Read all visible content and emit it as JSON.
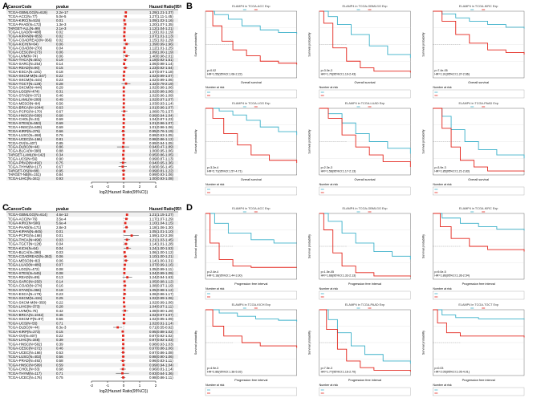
{
  "panels": {
    "A": {
      "letter": "A",
      "headers": [
        "CancerCode",
        "pvalue",
        "Hazard Ratio(95%CI)"
      ],
      "axis_title": "log2(Hazard Ratio(95%CI))",
      "ticks": [
        "-4",
        "-2",
        "0",
        "2",
        "4"
      ],
      "rows": [
        {
          "code": "TCGA-GBMLGG(N=619)",
          "p": "2.2e-17",
          "hr": "1.29(1.21-1.37)",
          "v": 0.37
        },
        {
          "code": "TCGA-ACC(N=77)",
          "p": "5.0e-5",
          "hr": "1.27(1.11-1.45)",
          "v": 0.35
        },
        {
          "code": "TCGA-KIRC(N=515)",
          "p": "0.01",
          "hr": "1.09(1.02-1.16)",
          "v": 0.13
        },
        {
          "code": "TCGA-PAAD(N=172)",
          "p": "1.3e-3",
          "hr": "1.20(1.07-1.35)",
          "v": 0.27
        },
        {
          "code": "TARGET-ALL(N=99)",
          "p": "2.1e-3",
          "hr": "1.12(1.04-1.21)",
          "v": 0.16
        },
        {
          "code": "TCGA-LUAD(N=488)",
          "p": "0.02",
          "hr": "1.10(1.02-1.19)",
          "v": 0.14
        },
        {
          "code": "TCGA-KIPAN(N=855)",
          "p": "0.02",
          "hr": "1.07(1.01-1.13)",
          "v": 0.1
        },
        {
          "code": "TCGA-COADREAD(N=366)",
          "p": "0.02",
          "hr": "1.15(1.02-1.29)",
          "v": 0.2
        },
        {
          "code": "TCGA-KICH(N=64)",
          "p": "0.06",
          "hr": "1.39(0.99-1.96)",
          "v": 0.48
        },
        {
          "code": "TCGA-COAD(N=270)",
          "p": "0.04",
          "hr": "1.12(1.01-1.25)",
          "v": 0.16
        },
        {
          "code": "TCGA-CESC(N=273)",
          "p": "0.06",
          "hr": "1.09(1.00-1.19)",
          "v": 0.12
        },
        {
          "code": "TCGA-UVM(N=74)",
          "p": "0.06",
          "hr": "1.40(0.98-2.01)",
          "v": 0.49
        },
        {
          "code": "TCGA-THCA(N=501)",
          "p": "0.19",
          "hr": "1.18(0.92-1.51)",
          "v": 0.24
        },
        {
          "code": "TCGA-SARC(N=254)",
          "p": "0.14",
          "hr": "1.06(0.98-1.14)",
          "v": 0.08
        },
        {
          "code": "TCGA-READ(N=90)",
          "p": "0.15",
          "hr": "1.23(0.92-1.64)",
          "v": 0.3
        },
        {
          "code": "TCGA-ESCA(N=181)",
          "p": "0.18",
          "hr": "1.07(0.97-1.18)",
          "v": 0.1
        },
        {
          "code": "TCGA-SKCM-M(N=347)",
          "p": "0.22",
          "hr": "1.02(0.99-1.07)",
          "v": 0.03
        },
        {
          "code": "TCGA-SKCM(N=444)",
          "p": "0.23",
          "hr": "1.02(0.99-1.06)",
          "v": 0.03
        },
        {
          "code": "TCGA-TGCT(N=128)",
          "p": "0.28",
          "hr": "1.32(0.79-2.19)",
          "v": 0.4
        },
        {
          "code": "TCGA-SKCM(N=444)",
          "p": "0.29",
          "hr": "1.02(0.98-1.06)",
          "v": 0.03
        },
        {
          "code": "TCGA-LGG(N=474)",
          "p": "0.31",
          "hr": "1.02(0.98-1.06)",
          "v": 0.03
        },
        {
          "code": "TCGA-STAD(N=372)",
          "p": "0.46",
          "hr": "1.02(0.96-1.09)",
          "v": 0.03
        },
        {
          "code": "TCGA-LAML(N=209)",
          "p": "0.49",
          "hr": "1.02(0.97-1.07)",
          "v": 0.03
        },
        {
          "code": "TCGA-MESO(N=84)",
          "p": "0.56",
          "hr": "1.03(0.93-1.14)",
          "v": 0.04
        },
        {
          "code": "TCGA-BRCA(N=1044)",
          "p": "0.63",
          "hr": "1.01(0.96-1.07)",
          "v": 0.01
        },
        {
          "code": "TCGA-PCPG(N=170)",
          "p": "0.67",
          "hr": "1.08(0.75-1.57)",
          "v": 0.11
        },
        {
          "code": "TCGA-HNSC(N=509)",
          "p": "0.68",
          "hr": "0.99(0.94-1.04)",
          "v": -0.01
        },
        {
          "code": "TCGA-CHOL(N=33)",
          "p": "0.69",
          "hr": "1.04(0.87-1.23)",
          "v": 0.06
        },
        {
          "code": "TCGA-STES(N=553)",
          "p": "0.69",
          "hr": "1.01(0.96-1.07)",
          "v": 0.01
        },
        {
          "code": "TCGA-HNSC(N=509)",
          "p": "0.69",
          "hr": "1.01(0.96-1.06)",
          "v": 0.01
        },
        {
          "code": "TCGA-KIRP(N=276)",
          "p": "0.66",
          "hr": "0.95(0.76-1.19)",
          "v": -0.07
        },
        {
          "code": "TCGA-LUSC(N=468)",
          "p": "0.76",
          "hr": "0.99(0.93-1.05)",
          "v": -0.01
        },
        {
          "code": "TCGA-UCEC(N=166)",
          "p": "0.81",
          "hr": "0.98(0.86-1.12)",
          "v": -0.03
        },
        {
          "code": "TCGA-OV(N=407)",
          "p": "0.85",
          "hr": "0.99(0.94-1.05)",
          "v": -0.01
        },
        {
          "code": "TCGA-DLBC(N=44)",
          "p": "0.86",
          "hr": "0.94(0.47-1.89)",
          "v": -0.09
        },
        {
          "code": "TCGA-BLCA(N=398)",
          "p": "0.88",
          "hr": "1.00(0.95-1.06)",
          "v": 0.0
        },
        {
          "code": "TARGET-LAML(N=142)",
          "p": "0.34",
          "hr": "0.95(0.86-1.05)",
          "v": -0.07
        },
        {
          "code": "TCGA-UCS(N=56)",
          "p": "0.90",
          "hr": "0.99(0.87-1.13)",
          "v": -0.01
        },
        {
          "code": "TCGA-PRAD(N=492)",
          "p": "0.75",
          "hr": "0.94(0.65-1.36)",
          "v": -0.09
        },
        {
          "code": "TCGA-THYM(N=117)",
          "p": "0.67",
          "hr": "0.90(0.56-1.45)",
          "v": -0.15
        },
        {
          "code": "TARGET-OS(N=88)",
          "p": "0.95",
          "hr": "0.99(0.81-1.22)",
          "v": -0.01
        },
        {
          "code": "TARGET-NB(N=151)",
          "p": "0.84",
          "hr": "0.99(0.93-1.06)",
          "v": -0.01
        },
        {
          "code": "TCGA-LIHC(N=341)",
          "p": "0.93",
          "hr": "1.00(0.93-1.08)",
          "v": 0.0
        }
      ]
    },
    "B": {
      "letter": "B",
      "plots": [
        {
          "title": "ELAMP4 in TCGA-ACC Exp",
          "stats": "p=0.02\nHR=1.55(95%CI:1.08-2.22)",
          "xlab": "Overall survival",
          "ylab": "Survival probability",
          "risk": "Number at risk"
        },
        {
          "title": "ELAMP4 in TCGA-GBMLGG Exp",
          "stats": "p=3.0e-3\nHR=1.70(95%CI:1.19-2.43)",
          "xlab": "Overall survival",
          "ylab": "Survival probability",
          "risk": "Number at risk"
        },
        {
          "title": "ELAMP4 in TCGA-KIRC Exp",
          "stats": "p=7.4e-05\nHR=1.91(95%CI:1.37-2.66)",
          "xlab": "Overall survival",
          "ylab": "Survival probability",
          "risk": "Number at risk"
        },
        {
          "title": "ELAMP4 in TCGA-LGG Exp",
          "stats": "p=3.2e-4\nHR=2.71(95%CI:1.57-4.71)",
          "xlab": "Overall survival",
          "ylab": "Survival probability",
          "risk": "Number at risk"
        },
        {
          "title": "ELAMP4 in TCGA-LUAD Exp",
          "stats": "p=2.3e-3\nHR=1.58(95%CI:1.17-2.13)",
          "xlab": "Overall survival",
          "ylab": "Survival probability",
          "risk": "Number at risk"
        },
        {
          "title": "ELAMP4 in TCGA-PAAD Exp",
          "stats": "p=3.9e-3\nHR=1.85(95%CI:1.21-2.83)",
          "xlab": "Overall survival",
          "ylab": "Survival probability",
          "risk": "Number at risk"
        }
      ]
    },
    "C": {
      "letter": "C",
      "headers": [
        "CancerCode",
        "pvalue",
        "Hazard Ratio(95%CI)"
      ],
      "axis_title": "log2(Hazard Ratio(95%CI))",
      "ticks": [
        "-2",
        "-1",
        "0",
        "1",
        "2"
      ],
      "rows": [
        {
          "code": "TCGA-GBMLGG(N=614)",
          "p": "4.6e-12",
          "hr": "1.21(1.15-1.27)",
          "v": 0.28
        },
        {
          "code": "TCGA-ACC(N=76)",
          "p": "3.5e-4",
          "hr": "1.17(1.07-1.29)",
          "v": 0.23
        },
        {
          "code": "TCGA-KIRC(N=506)",
          "p": "5.6e-4",
          "hr": "1.10(1.04-1.15)",
          "v": 0.14
        },
        {
          "code": "TCGA-PAAD(N=171)",
          "p": "2.8e-3",
          "hr": "1.18(1.06-1.30)",
          "v": 0.24
        },
        {
          "code": "TCGA-KIPAN(N=845)",
          "p": "0.01",
          "hr": "1.05(1.01-1.10)",
          "v": 0.07
        },
        {
          "code": "TCGA-PCPG(N=168)",
          "p": "0.01",
          "hr": "1.59(1.02-2.39)",
          "v": 0.67
        },
        {
          "code": "TCGA-THCA(N=499)",
          "p": "0.03",
          "hr": "1.21(1.03-1.45)",
          "v": 0.28
        },
        {
          "code": "TCGA-TGCT(N=128)",
          "p": "0.04",
          "hr": "1.14(1.01-1.28)",
          "v": 0.19
        },
        {
          "code": "TCGA-KICH(N=64)",
          "p": "0.04",
          "hr": "1.24(1.00-1.53)",
          "v": 0.31
        },
        {
          "code": "TCGA-BLCA(N=398)",
          "p": "0.03",
          "hr": "1.06(1.00-1.12)",
          "v": 0.08
        },
        {
          "code": "TCGA-COADREAD(N=363)",
          "p": "0.06",
          "hr": "1.10(1.00-1.21)",
          "v": 0.14
        },
        {
          "code": "TCGA-MESO(N=82)",
          "p": "0.06",
          "hr": "1.14(1.00-1.31)",
          "v": 0.19
        },
        {
          "code": "TCGA-LUAD(N=486)",
          "p": "0.07",
          "hr": "1.07(0.99-1.16)",
          "v": 0.1
        },
        {
          "code": "TCGA-LGG(N=472)",
          "p": "0.08",
          "hr": "1.05(0.99-1.11)",
          "v": 0.07
        },
        {
          "code": "TCGA-STES(N=545)",
          "p": "0.08",
          "hr": "1.04(0.99-1.09)",
          "v": 0.06
        },
        {
          "code": "TCGA-READ(N=89)",
          "p": "0.13",
          "hr": "1.24(0.94-1.63)",
          "v": 0.31
        },
        {
          "code": "TCGA-SARC(N=250)",
          "p": "0.14",
          "hr": "1.05(0.98-1.12)",
          "v": 0.07
        },
        {
          "code": "TCGA-COAD(N=274)",
          "p": "0.16",
          "hr": "1.08(0.97-1.19)",
          "v": 0.11
        },
        {
          "code": "TCGA-STAD(N=366)",
          "p": "0.18",
          "hr": "1.05(0.98-1.12)",
          "v": 0.07
        },
        {
          "code": "TCGA-ESCA(N=179)",
          "p": "0.23",
          "hr": "1.06(0.96-1.17)",
          "v": 0.08
        },
        {
          "code": "TCGA-SKCM(N=434)",
          "p": "0.25",
          "hr": "1.02(0.99-1.06)",
          "v": 0.03
        },
        {
          "code": "TCGA-SKCM-M(N=350)",
          "p": "0.22",
          "hr": "1.02(0.99-1.06)",
          "v": 0.03
        },
        {
          "code": "TCGA-LIHC(N=373)",
          "p": "0.28",
          "hr": "1.04(0.97-1.11)",
          "v": 0.06
        },
        {
          "code": "TCGA-UVM(N=75)",
          "p": "0.42",
          "hr": "1.08(0.90-1.29)",
          "v": 0.11
        },
        {
          "code": "TCGA-BRCA(N=1042)",
          "p": "0.46",
          "hr": "1.02(0.97-1.07)",
          "v": 0.03
        },
        {
          "code": "TCGA-SKCM-P(N=97)",
          "p": "0.56",
          "hr": "1.02(0.95-1.09)",
          "v": 0.03
        },
        {
          "code": "TCGA-UCS(N=55)",
          "p": "0.71",
          "hr": "1.02(0.91-1.14)",
          "v": 0.03
        },
        {
          "code": "TCGA-DLBC(N=44)",
          "p": "8.3e-3",
          "hr": "0.71(0.55-0.92)",
          "v": -0.49
        },
        {
          "code": "TCGA-KIRP(N=273)",
          "p": "0.15",
          "hr": "0.95(0.88-1.02)",
          "v": -0.07
        },
        {
          "code": "TCGA-OV(N=407)",
          "p": "0.22",
          "hr": "0.97(0.92-1.02)",
          "v": -0.04
        },
        {
          "code": "TCGA-LIHC(N=348)",
          "p": "0.39",
          "hr": "0.97(0.92-1.03)",
          "v": -0.04
        },
        {
          "code": "TCGA-HNSC(N=502)",
          "p": "0.39",
          "hr": "0.98(0.93-1.03)",
          "v": -0.03
        },
        {
          "code": "TCGA-CESC(N=272)",
          "p": "0.46",
          "hr": "0.97(0.88-1.06)",
          "v": -0.04
        },
        {
          "code": "TCGA-UCEC(N=166)",
          "p": "0.53",
          "hr": "0.97(0.86-1.08)",
          "v": -0.04
        },
        {
          "code": "TCGA-LUSC(N=402)",
          "p": "0.56",
          "hr": "0.98(0.90-1.06)",
          "v": -0.03
        },
        {
          "code": "TCGA-PRAD(N=492)",
          "p": "0.58",
          "hr": "0.96(0.83-1.11)",
          "v": -0.06
        },
        {
          "code": "TCGA-HNSC(N=509)",
          "p": "0.59",
          "hr": "0.99(0.94-1.04)",
          "v": -0.01
        },
        {
          "code": "TCGA-CHOL(N=33)",
          "p": "0.68",
          "hr": "0.96(0.81-1.14)",
          "v": -0.06
        },
        {
          "code": "TCGA-THYM(N=117)",
          "p": "0.71",
          "hr": "0.93(0.64-1.36)",
          "v": -0.1
        },
        {
          "code": "TCGA-UCEC(N=176)",
          "p": "0.75",
          "hr": "0.98(0.86-1.11)",
          "v": -0.03
        }
      ]
    },
    "D": {
      "letter": "D",
      "plots": [
        {
          "title": "ELAMP4 in TCGA-ACC Exp",
          "stats": "p=2.4e-4\nHR=2.18(95%CI:1.44-3.30)",
          "xlab": "Progression free interval",
          "ylab": "Survival probability",
          "risk": "Number at risk"
        },
        {
          "title": "ELAMP4 in TCGA-GBMLGG Exp",
          "stats": "p=1.5e-05\nHR=1.68(95%CI:1.33-2.13)",
          "xlab": "Progression free interval",
          "ylab": "Survival probability",
          "risk": "Number at risk"
        },
        {
          "title": "ELAMP4 in TCGA-KIRC Exp",
          "stats": "p=9.0e-5\nHR=1.86(95%CI:1.36-2.54)",
          "xlab": "Progression free interval",
          "ylab": "Survival probability",
          "risk": "Number at risk"
        },
        {
          "title": "ELAMP4 in TCGA-KICH Exp",
          "stats": "p=4.9e-3\nHR=2.86(95%CI:1.38-5.92)",
          "xlab": "Progression free interval",
          "ylab": "Survival probability",
          "risk": "Number at risk"
        },
        {
          "title": "ELAMP4 in TCGA-PAAD Exp",
          "stats": "p=7.5e-3\nHR=1.77(95%CI:1.16-2.70)",
          "xlab": "Progression free interval",
          "ylab": "Survival probability",
          "risk": "Number at risk"
        },
        {
          "title": "ELAMP4 in TCGA-TGCT Exp",
          "stats": "p=0.03\nHR=2.05(95%CI:1.05-4.01)",
          "xlab": "Progression free interval",
          "ylab": "Survival probability",
          "risk": "Number at risk"
        }
      ]
    }
  },
  "colors": {
    "high": "#e3241b",
    "low": "#3bb0c9",
    "grid": "#d8d8d8"
  }
}
